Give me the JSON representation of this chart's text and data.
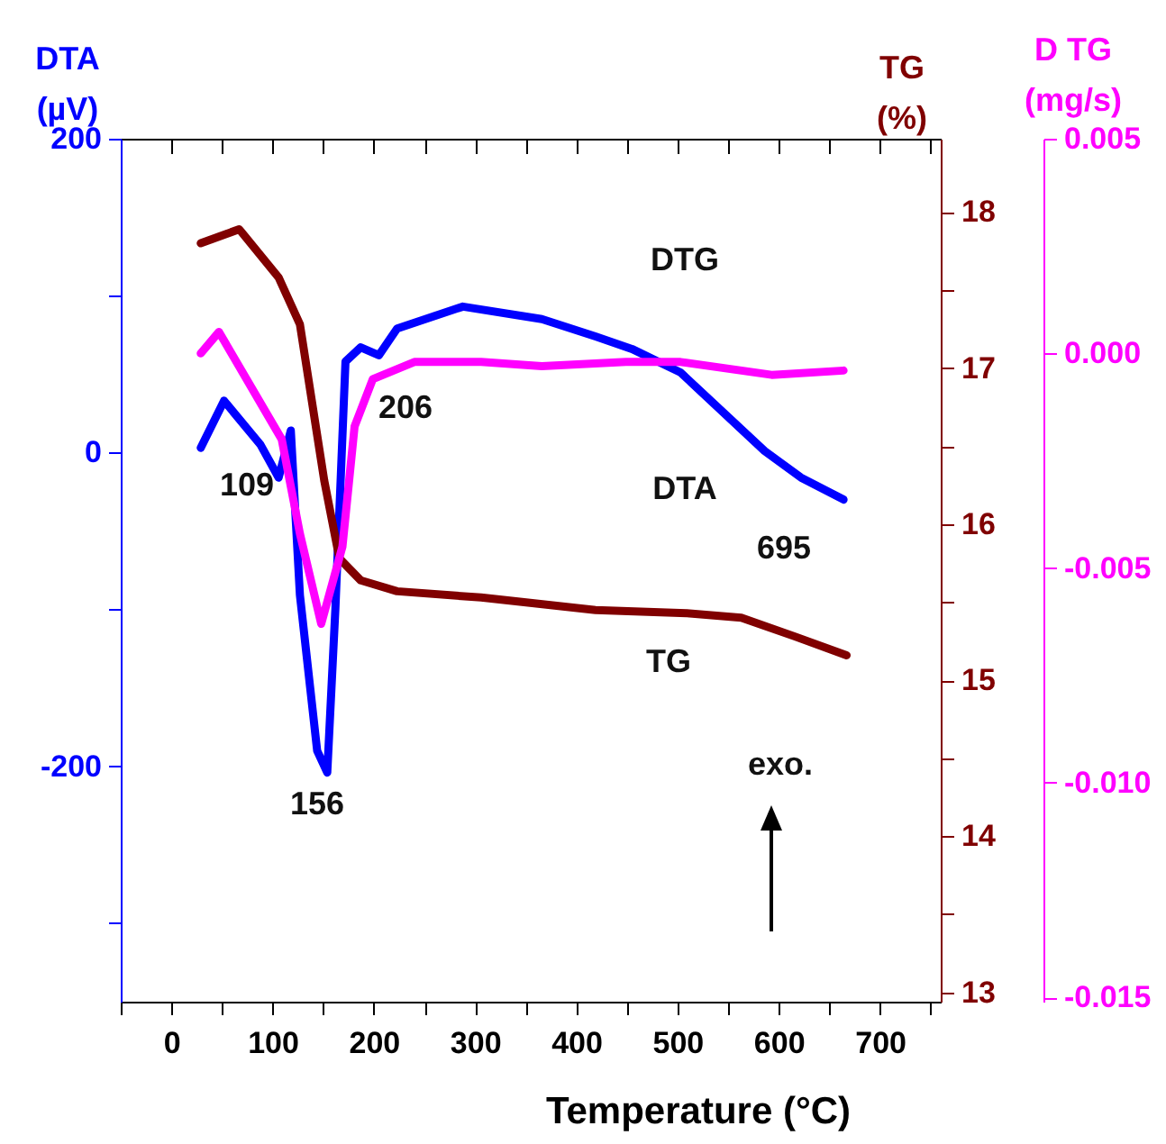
{
  "chart_data": {
    "type": "line",
    "xlabel": "Temperature (°C)",
    "ylabel": "DTA (µV)",
    "y2label": "TG (%)",
    "y3label": "D TG (mg/s)",
    "xlim": [
      -50,
      760
    ],
    "xticks": [
      {
        "value": -50,
        "label": null
      },
      0,
      {
        "value": 50,
        "label": null
      },
      100,
      {
        "value": 150,
        "label": null
      },
      200,
      {
        "value": 250,
        "label": null
      },
      300,
      {
        "value": 350,
        "label": null
      },
      400,
      {
        "value": 450,
        "label": null
      },
      500,
      {
        "value": 550,
        "label": null
      },
      600,
      {
        "value": 650,
        "label": null
      },
      700,
      {
        "value": 750,
        "label": null
      }
    ],
    "ylim": [
      -350,
      200
    ],
    "yticks": [
      {
        "value": -300,
        "label": null
      },
      -200,
      {
        "value": -100,
        "label": null
      },
      0,
      {
        "value": 100,
        "label": null
      },
      200
    ],
    "y2lim": [
      12.94,
      18.47
    ],
    "y2ticks": [
      13,
      {
        "value": 13.5,
        "label": null
      },
      14,
      {
        "value": 14.5,
        "label": null
      },
      15,
      {
        "value": 15.5,
        "label": null
      },
      16,
      {
        "value": 16.5,
        "label": null
      },
      17,
      {
        "value": 17.5,
        "label": null
      },
      18
    ],
    "y3lim": [
      -0.0151,
      0.005
    ],
    "y3ticks": [
      {
        "value": -0.015,
        "label": "-0.015"
      },
      {
        "value": -0.01,
        "label": "-0.010"
      },
      {
        "value": -0.005,
        "label": "-0.005"
      },
      {
        "value": 0,
        "label": "0.000"
      },
      {
        "value": 0.005,
        "label": "0.005"
      }
    ],
    "grid": false,
    "line_style": "solid",
    "marker": "none",
    "series": [
      {
        "color": "#0000ff",
        "x": [
          29,
          52,
          88,
          106,
          118,
          127,
          144,
          154,
          162,
          172,
          187,
          205,
          223,
          288,
          366,
          419,
          455,
          503,
          586,
          622,
          664
        ],
        "values": [
          3,
          33,
          5,
          -16,
          14,
          -91,
          -190,
          -204,
          -100,
          58,
          67,
          62,
          79,
          93,
          85,
          74,
          66,
          51,
          1,
          -16,
          -30
        ]
      },
      {
        "color": "#800000",
        "axis": "y2",
        "x": [
          29,
          67,
          106,
          127,
          151,
          166,
          187,
          223,
          306,
          419,
          509,
          563,
          616,
          667
        ],
        "values": [
          17.8,
          17.89,
          17.58,
          17.28,
          16.28,
          15.78,
          15.64,
          15.57,
          15.53,
          15.45,
          15.43,
          15.4,
          15.28,
          15.16
        ]
      },
      {
        "color": "#ff00ff",
        "axis": "y3",
        "x": [
          29,
          47,
          109,
          127,
          148,
          169,
          181,
          199,
          240,
          306,
          366,
          449,
          503,
          593,
          664
        ],
        "values": [
          0,
          0.0005,
          -0.002,
          -0.0042,
          -0.0063,
          -0.0045,
          -0.0017,
          -0.0006,
          -0.0002,
          -0.0002,
          -0.0003,
          -0.0002,
          -0.0002,
          -0.0005,
          -0.0004
        ]
      }
    ],
    "annotations": [
      "109",
      "156",
      "206",
      "695",
      "DTG",
      "DTA",
      "TG",
      "exo."
    ]
  }
}
